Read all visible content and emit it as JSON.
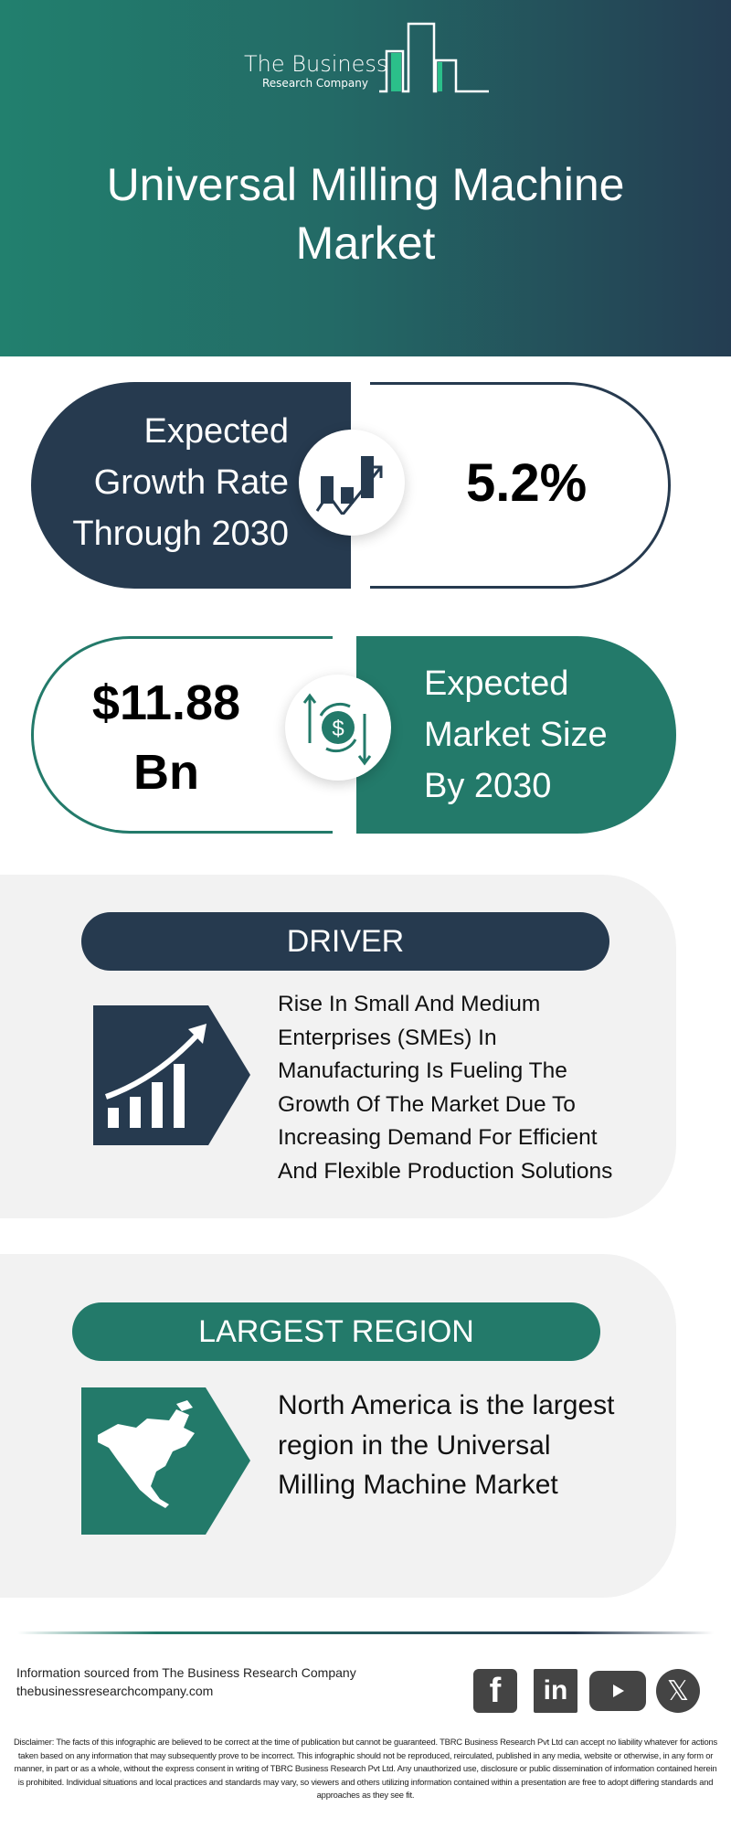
{
  "brand": {
    "line1": "The Business",
    "line2": "Research Company"
  },
  "title": {
    "line1": "Universal Milling Machine",
    "line2": "Market"
  },
  "growth": {
    "label_lines": [
      "Expected",
      "Growth Rate",
      "Through 2030"
    ],
    "value": "5.2%",
    "icon": "growth-chart-icon"
  },
  "market_size": {
    "value_lines": [
      "$11.88",
      "Bn"
    ],
    "label_lines": [
      "Expected",
      "Market Size",
      "By 2030"
    ],
    "icon": "dollar-cycle-icon"
  },
  "driver": {
    "heading": "DRIVER",
    "text_lines": [
      "Rise In Small And Medium",
      "Enterprises (SMEs) In",
      "Manufacturing Is Fueling The",
      "Growth Of The Market Due To",
      "Increasing Demand For Efficient",
      "And Flexible Production Solutions"
    ],
    "icon": "rising-bars-arrow-icon"
  },
  "region": {
    "heading": "LARGEST REGION",
    "text_lines": [
      "North America is the largest",
      "region in the Universal",
      "Milling Machine Market"
    ],
    "icon": "north-america-map-icon"
  },
  "footer": {
    "source": "Information sourced from The Business Research Company",
    "website": "thebusinessresearchcompany.com",
    "social": [
      "facebook",
      "linkedin",
      "youtube",
      "x"
    ]
  },
  "disclaimer": "Disclaimer: The facts of this infographic are believed to be correct at the time of publication but cannot be guaranteed. TBRC Business Research Pvt Ltd can accept no liability whatever for actions taken based on any information that may subsequently prove to be incorrect. This infographic should not be reproduced, reirculated, published in any media, website or otherwise, in any form or manner, in part or as a whole, without the express consent in writing of TBRC Business Research Pvt Ltd. Any unauthorized use, disclosure or public dissemination of information contained herein is prohibited. Individual situations and local practices and standards may vary, so viewers and others utilizing information contained within a presentation are free to adopt differing standards and approaches as they see fit.",
  "colors": {
    "navy": "#263a4f",
    "teal": "#237a6a",
    "logo_accent": "#2bbf8a"
  }
}
